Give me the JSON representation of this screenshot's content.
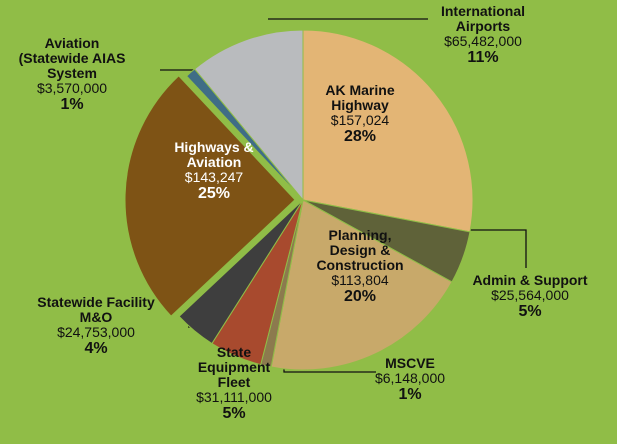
{
  "chart_data": {
    "type": "pie",
    "categories": [
      "AK Marine\nHighway",
      "Admin & Support",
      "Planning,\nDesign &\nConstruction",
      "MSCVE",
      "State\nEquipment\nFleet",
      "Statewide Facility\nM&O",
      "Highways &\nAviation",
      "Aviation\n(Statewide AIAS\nSystem",
      "International\nAirports"
    ],
    "values": [
      28,
      5,
      20,
      1,
      5,
      4,
      25,
      1,
      11
    ],
    "value_labels": [
      "28%",
      "5%",
      "20%",
      "1%",
      "5%",
      "4%",
      "25%",
      "1%",
      "11%"
    ],
    "amount_labels": [
      "$157,024",
      "$25,564,000",
      "$113,804",
      "$6,148,000",
      "$31,111,000",
      "$24,753,000",
      "$143,247",
      "$3,570,000",
      "$65,482,000"
    ],
    "colors": [
      "#e3b575",
      "#5f6239",
      "#c8a96a",
      "#8c7a4e",
      "#a84a2e",
      "#3e3e3e",
      "#7e5315",
      "#3f6d86",
      "#b9bbbe"
    ]
  }
}
